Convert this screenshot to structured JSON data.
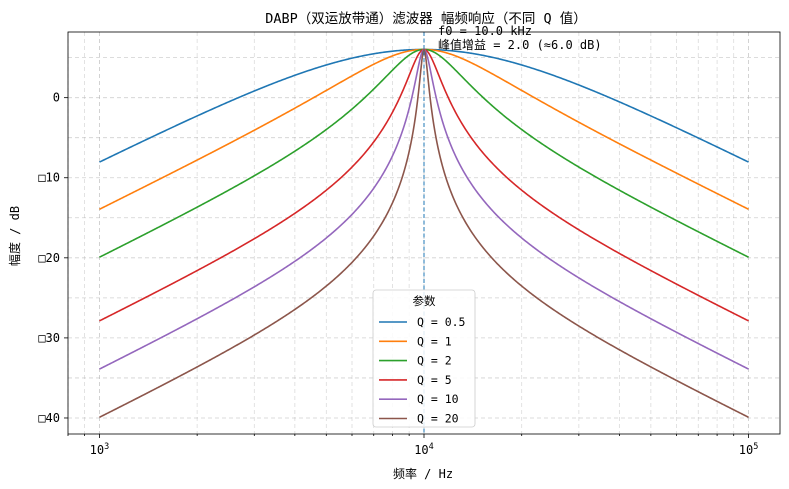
{
  "chart_data": {
    "type": "line",
    "title": "DABP（双运放带通）滤波器 幅频响应（不同 Q 值）",
    "xlabel": "频率 / Hz",
    "ylabel": "幅度 / dB",
    "xscale": "log",
    "xlim": [
      800,
      125000
    ],
    "ylim": [
      -42,
      8.2
    ],
    "grid": true,
    "x_ticks": [
      {
        "value": 1000,
        "base": "10",
        "exp": "3"
      },
      {
        "value": 10000,
        "base": "10",
        "exp": "4"
      },
      {
        "value": 100000,
        "base": "10",
        "exp": "5"
      }
    ],
    "y_ticks": [
      {
        "value": 0,
        "label": "0"
      },
      {
        "value": -10,
        "label": "□10"
      },
      {
        "value": -20,
        "label": "□20"
      },
      {
        "value": -30,
        "label": "□30"
      },
      {
        "value": -40,
        "label": "□40"
      }
    ],
    "f0_hz": 10000,
    "peak_gain": 2.0,
    "annotations": [
      "f0 = 10.0 kHz",
      "峰值增益 = 2.0 (≈6.0 dB)"
    ],
    "legend_title": "参数",
    "legend_position": "lower-center",
    "series": [
      {
        "name": "Q = 0.5",
        "q": 0.5,
        "color": "#1f77b4",
        "x_hz": [
          1000,
          2000,
          5000,
          10000,
          20000,
          50000,
          100000
        ],
        "y_db": [
          -8.0,
          -3.2,
          4.1,
          6.0,
          3.7,
          -2.2,
          -8.0
        ]
      },
      {
        "name": "Q = 1",
        "q": 1,
        "color": "#ff7f0e",
        "x_hz": [
          1000,
          2000,
          5000,
          10000,
          20000,
          50000,
          100000
        ],
        "y_db": [
          -14.0,
          -8.2,
          0.3,
          6.0,
          0.6,
          -8.1,
          -14.0
        ]
      },
      {
        "name": "Q = 2",
        "q": 2,
        "color": "#2ca02c",
        "x_hz": [
          1000,
          2000,
          5000,
          10000,
          20000,
          50000,
          100000
        ],
        "y_db": [
          -20.0,
          -14.0,
          -4.9,
          6.0,
          -4.9,
          -14.0,
          -20.0
        ]
      },
      {
        "name": "Q = 5",
        "q": 5,
        "color": "#d62728",
        "x_hz": [
          1000,
          2000,
          5000,
          10000,
          20000,
          50000,
          100000
        ],
        "y_db": [
          -27.9,
          -21.7,
          -12.3,
          6.0,
          -12.3,
          -21.7,
          -27.9
        ]
      },
      {
        "name": "Q = 10",
        "q": 10,
        "color": "#9467bd",
        "x_hz": [
          1000,
          2000,
          5000,
          10000,
          20000,
          50000,
          100000
        ],
        "y_db": [
          -33.9,
          -27.7,
          -18.3,
          6.0,
          -18.3,
          -27.7,
          -33.9
        ]
      },
      {
        "name": "Q = 20",
        "q": 20,
        "color": "#8c564b",
        "x_hz": [
          1000,
          2000,
          5000,
          10000,
          20000,
          50000,
          100000
        ],
        "y_db": [
          -39.9,
          -33.7,
          -24.3,
          6.0,
          -24.3,
          -33.7,
          -39.9
        ]
      }
    ]
  }
}
